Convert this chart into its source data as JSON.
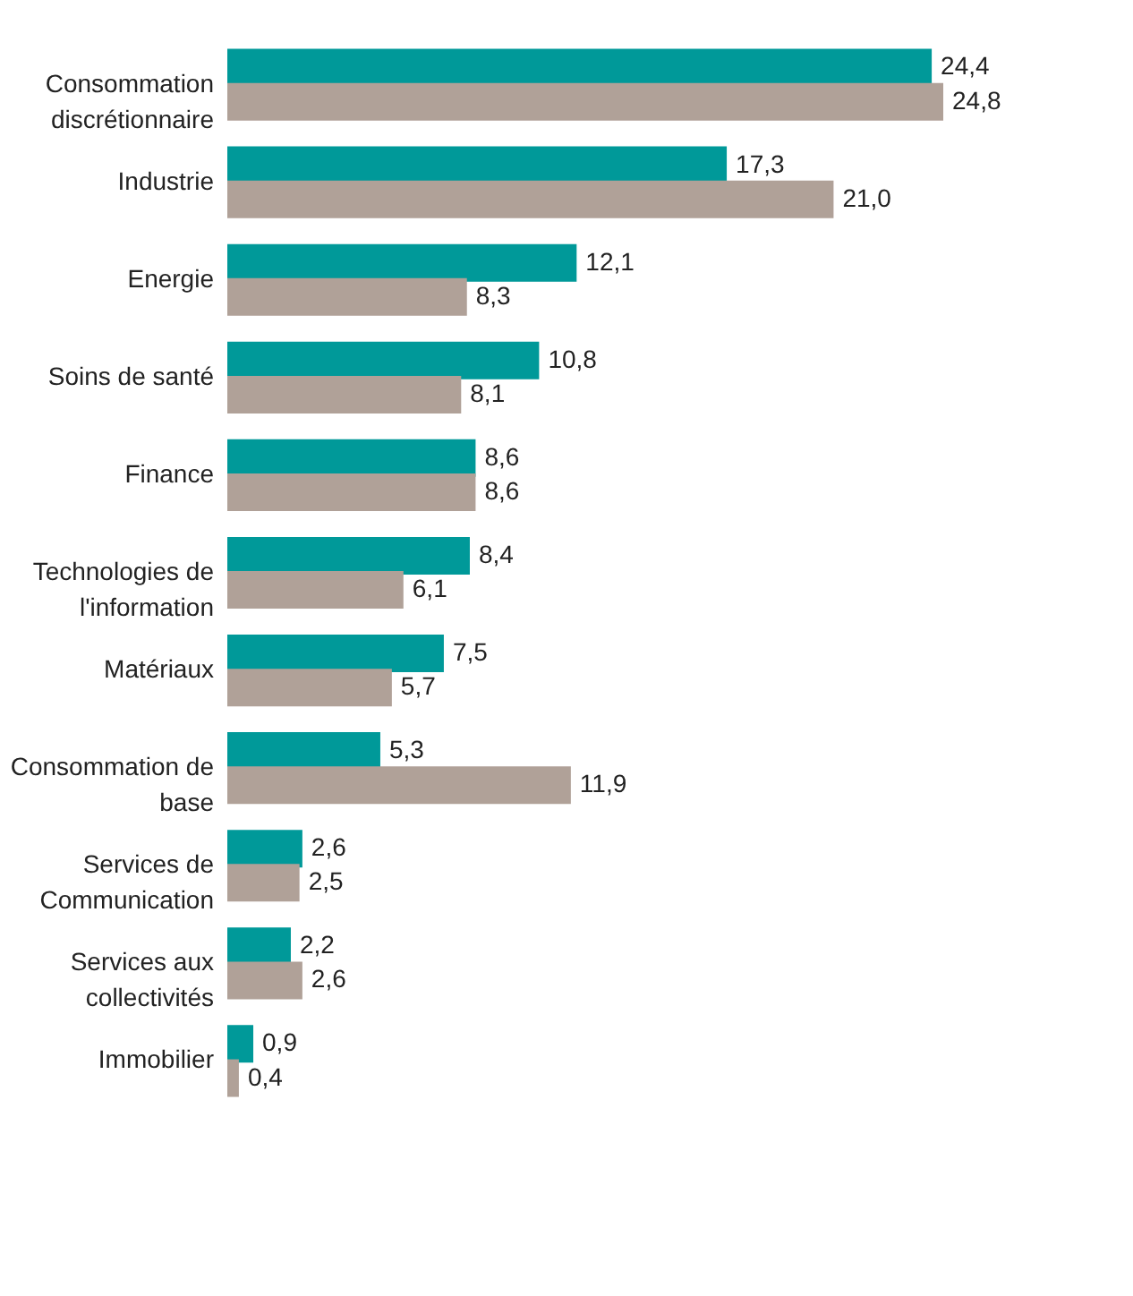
{
  "chart_data": {
    "type": "bar",
    "orientation": "horizontal",
    "grid": false,
    "categories": [
      "Consommation\ndiscrétionnaire",
      "Industrie",
      "Energie",
      "Soins de santé",
      "Finance",
      "Technologies de\nl'information",
      "Matériaux",
      "Consommation de\nbase",
      "Services de\nCommunication",
      "Services aux\ncollectivités",
      "Immobilier"
    ],
    "series": [
      {
        "color": "#009999",
        "values": [
          24.4,
          17.3,
          12.1,
          10.8,
          8.6,
          8.4,
          7.5,
          5.3,
          2.6,
          2.2,
          0.9
        ],
        "value_labels": [
          "24,4",
          "17,3",
          "12,1",
          "10,8",
          "8,6",
          "8,4",
          "7,5",
          "5,3",
          "2,6",
          "2,2",
          "0,9"
        ]
      },
      {
        "color": "#b0a198",
        "values": [
          24.8,
          21.0,
          8.3,
          8.1,
          8.6,
          6.1,
          5.7,
          11.9,
          2.5,
          2.6,
          0.4
        ],
        "value_labels": [
          "24,8",
          "21,0",
          "8,3",
          "8,1",
          "8,6",
          "6,1",
          "5,7",
          "11,9",
          "2,5",
          "2,6",
          "0,4"
        ]
      }
    ]
  }
}
